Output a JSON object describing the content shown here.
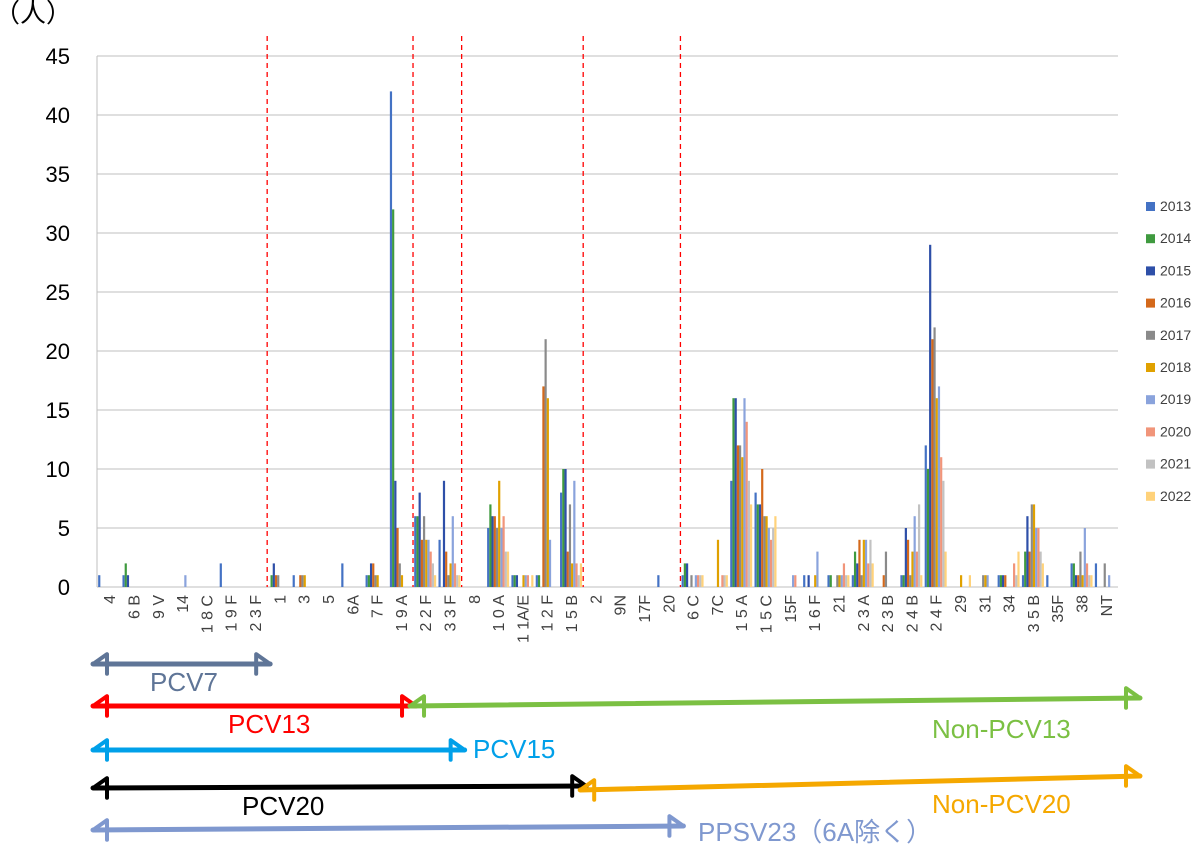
{
  "chart_data": {
    "type": "bar",
    "y_unit_label": "（人）",
    "ylim": [
      0,
      45
    ],
    "yticks": [
      0,
      5,
      10,
      15,
      20,
      25,
      30,
      35,
      40,
      45
    ],
    "grid": true,
    "legend_position": "right",
    "categories": [
      "4",
      "6 B",
      "9 V",
      "14",
      "1 8 C",
      "1 9 F",
      "2 3 F",
      "1",
      "3",
      "5",
      "6A",
      "7 F",
      "1 9 A",
      "2 2 F",
      "3 3 F",
      "8",
      "1 0 A",
      "1 1A/E",
      "1 2 F",
      "1 5 B",
      "2",
      "9N",
      "17F",
      "20",
      "6 C",
      "7C",
      "1 5 A",
      "1 5 C",
      "15F",
      "1 6 F",
      "21",
      "2 3 A",
      "2 3 B",
      "2 4 B",
      "2 4 F",
      "29",
      "31",
      "34",
      "3 5 B",
      "35F",
      "38",
      "NT"
    ],
    "series": [
      {
        "name": "2013",
        "color": "#4472c4",
        "values": [
          1,
          1,
          0,
          0,
          0,
          2,
          0,
          0,
          1,
          0,
          2,
          1,
          42,
          6,
          4,
          0,
          5,
          1,
          1,
          8,
          0,
          0,
          0,
          1,
          1,
          0,
          9,
          8,
          0,
          1,
          1,
          1,
          0,
          1,
          12,
          0,
          0,
          1,
          1,
          1,
          2,
          2
        ]
      },
      {
        "name": "2014",
        "color": "#3f9a3f",
        "values": [
          0,
          2,
          0,
          0,
          0,
          0,
          0,
          1,
          0,
          0,
          0,
          1,
          32,
          6,
          0,
          0,
          7,
          1,
          1,
          10,
          0,
          0,
          0,
          0,
          2,
          0,
          16,
          7,
          0,
          0,
          1,
          3,
          0,
          1,
          10,
          0,
          0,
          1,
          3,
          0,
          2,
          0
        ]
      },
      {
        "name": "2015",
        "color": "#2e4fa8",
        "values": [
          0,
          1,
          0,
          0,
          0,
          0,
          0,
          2,
          0,
          0,
          0,
          2,
          9,
          8,
          9,
          0,
          6,
          1,
          0,
          10,
          0,
          0,
          0,
          0,
          2,
          0,
          16,
          7,
          0,
          1,
          0,
          2,
          0,
          5,
          29,
          0,
          0,
          1,
          6,
          0,
          1,
          0
        ]
      },
      {
        "name": "2016",
        "color": "#d4691b",
        "values": [
          0,
          0,
          0,
          0,
          0,
          0,
          0,
          1,
          1,
          0,
          0,
          2,
          5,
          4,
          3,
          0,
          6,
          0,
          17,
          3,
          0,
          0,
          0,
          0,
          0,
          0,
          12,
          10,
          0,
          0,
          0,
          4,
          1,
          4,
          21,
          0,
          0,
          1,
          3,
          0,
          1,
          0
        ]
      },
      {
        "name": "2017",
        "color": "#8a8a8a",
        "values": [
          0,
          0,
          0,
          0,
          0,
          0,
          0,
          1,
          1,
          0,
          0,
          1,
          2,
          6,
          1,
          0,
          5,
          0,
          21,
          7,
          0,
          0,
          0,
          0,
          1,
          0,
          12,
          6,
          0,
          0,
          1,
          1,
          3,
          1,
          22,
          0,
          1,
          0,
          7,
          0,
          3,
          2
        ]
      },
      {
        "name": "2018",
        "color": "#e0a100",
        "values": [
          0,
          0,
          0,
          0,
          0,
          0,
          0,
          0,
          1,
          0,
          0,
          1,
          1,
          4,
          2,
          0,
          9,
          1,
          16,
          2,
          0,
          0,
          0,
          0,
          0,
          4,
          11,
          6,
          0,
          1,
          1,
          4,
          0,
          3,
          16,
          1,
          1,
          0,
          7,
          0,
          1,
          0
        ]
      },
      {
        "name": "2019",
        "color": "#8aa3dc",
        "values": [
          0,
          0,
          0,
          1,
          0,
          0,
          0,
          0,
          0,
          0,
          0,
          0,
          0,
          4,
          6,
          0,
          5,
          1,
          4,
          9,
          0,
          0,
          0,
          0,
          1,
          0,
          16,
          5,
          1,
          3,
          1,
          4,
          0,
          6,
          17,
          0,
          1,
          0,
          5,
          0,
          5,
          1
        ]
      },
      {
        "name": "2020",
        "color": "#f1957a",
        "values": [
          0,
          0,
          0,
          0,
          0,
          0,
          0,
          0,
          0,
          0,
          0,
          0,
          0,
          3,
          2,
          0,
          6,
          1,
          0,
          2,
          0,
          0,
          0,
          0,
          1,
          1,
          14,
          4,
          1,
          0,
          2,
          2,
          0,
          3,
          11,
          0,
          0,
          2,
          5,
          0,
          2,
          0
        ]
      },
      {
        "name": "2021",
        "color": "#c2c2c2",
        "values": [
          0,
          0,
          0,
          0,
          0,
          0,
          0,
          0,
          0,
          0,
          0,
          0,
          0,
          2,
          1,
          0,
          3,
          0,
          0,
          1,
          0,
          0,
          0,
          0,
          1,
          1,
          9,
          5,
          0,
          0,
          1,
          4,
          0,
          7,
          9,
          0,
          0,
          1,
          3,
          0,
          1,
          0
        ]
      },
      {
        "name": "2022",
        "color": "#ffd27a",
        "values": [
          0,
          0,
          0,
          0,
          0,
          0,
          0,
          0,
          0,
          0,
          0,
          0,
          0,
          1,
          1,
          0,
          3,
          1,
          0,
          2,
          0,
          0,
          0,
          0,
          1,
          1,
          7,
          6,
          0,
          0,
          1,
          2,
          0,
          1,
          3,
          1,
          0,
          3,
          2,
          0,
          1,
          0
        ]
      }
    ],
    "boundaries_after_category": [
      "2 3 F",
      "1 9 A",
      "3 3 F",
      "1 5 B",
      "20"
    ]
  },
  "annotations": [
    {
      "label": "PCV7",
      "color": "#5f7597",
      "start": "4",
      "end": "2 3 F",
      "row": 1
    },
    {
      "label": "PCV13",
      "color": "#ff0000",
      "start": "4",
      "end": "1 9 A",
      "row": 2
    },
    {
      "label": "Non-PCV13",
      "color": "#7bc043",
      "start": "2 2 F",
      "end": "NT",
      "row": 2
    },
    {
      "label": "PCV15",
      "color": "#00a0e9",
      "start": "4",
      "end": "3 3 F",
      "row": 3
    },
    {
      "label": "PCV20",
      "color": "#000000",
      "start": "4",
      "end": "1 5 B",
      "row": 4
    },
    {
      "label": "Non-PCV20",
      "color": "#f5a800",
      "start": "2",
      "end": "NT",
      "row": 4
    },
    {
      "label": "PPSV23（6A除く）",
      "color": "#7f98cf",
      "start": "4",
      "end": "20",
      "row": 5
    }
  ]
}
